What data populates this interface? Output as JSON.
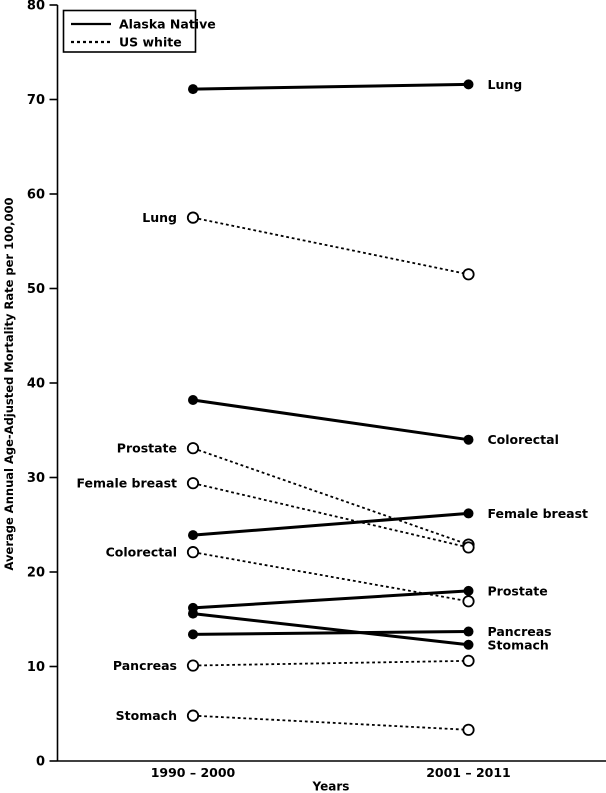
{
  "page": {
    "background": "#ffffff",
    "foreground": "#000000"
  },
  "chart_data": {
    "type": "line",
    "subtype": "slope-graph",
    "title": "",
    "xlabel": "Years",
    "ylabel": "Average Annual Age-Adjusted Mortality Rate per 100,000",
    "categories": [
      "1990 – 2000",
      "2001 – 2011"
    ],
    "ylim": [
      0,
      80
    ],
    "yticks": [
      0,
      10,
      20,
      30,
      40,
      50,
      60,
      70,
      80
    ],
    "grid": false,
    "line_color": "#000000",
    "background_color": "#ffffff",
    "legend": {
      "position": "top-left",
      "entries": [
        {
          "label": "Alaska Native",
          "line": "solid",
          "marker": "filled"
        },
        {
          "label": "US white",
          "line": "dashed",
          "marker": "open"
        }
      ]
    },
    "series": [
      {
        "group": "Alaska Native",
        "cancer": "Lung",
        "label": "Lung",
        "label_side": "right",
        "line": "solid",
        "marker": "filled",
        "values": [
          71.1,
          71.6
        ]
      },
      {
        "group": "Alaska Native",
        "cancer": "Colorectal",
        "label": "Colorectal",
        "label_side": "right",
        "line": "solid",
        "marker": "filled",
        "values": [
          38.2,
          34.0
        ]
      },
      {
        "group": "Alaska Native",
        "cancer": "Female breast",
        "label": "Female breast",
        "label_side": "right",
        "line": "solid",
        "marker": "filled",
        "values": [
          23.9,
          26.2
        ]
      },
      {
        "group": "Alaska Native",
        "cancer": "Prostate",
        "label": "Prostate",
        "label_side": "right",
        "line": "solid",
        "marker": "filled",
        "values": [
          16.2,
          18.0
        ]
      },
      {
        "group": "Alaska Native",
        "cancer": "Pancreas",
        "label": "Pancreas",
        "label_side": "right",
        "line": "solid",
        "marker": "filled",
        "values": [
          13.4,
          13.7
        ]
      },
      {
        "group": "Alaska Native",
        "cancer": "Stomach",
        "label": "Stomach",
        "label_side": "right",
        "line": "solid",
        "marker": "filled",
        "values": [
          15.6,
          12.3
        ]
      },
      {
        "group": "US white",
        "cancer": "Lung",
        "label": "Lung",
        "label_side": "left",
        "line": "dashed",
        "marker": "open",
        "values": [
          57.5,
          51.5
        ]
      },
      {
        "group": "US white",
        "cancer": "Prostate",
        "label": "Prostate",
        "label_side": "left",
        "line": "dashed",
        "marker": "open",
        "values": [
          33.1,
          22.9
        ]
      },
      {
        "group": "US white",
        "cancer": "Female breast",
        "label": "Female breast",
        "label_side": "left",
        "line": "dashed",
        "marker": "open",
        "values": [
          29.4,
          22.6
        ]
      },
      {
        "group": "US white",
        "cancer": "Colorectal",
        "label": "Colorectal",
        "label_side": "left",
        "line": "dashed",
        "marker": "open",
        "values": [
          22.1,
          16.9
        ]
      },
      {
        "group": "US white",
        "cancer": "Pancreas",
        "label": "Pancreas",
        "label_side": "left",
        "line": "dashed",
        "marker": "open",
        "values": [
          10.1,
          10.6
        ]
      },
      {
        "group": "US white",
        "cancer": "Stomach",
        "label": "Stomach",
        "label_side": "left",
        "line": "dashed",
        "marker": "open",
        "values": [
          4.8,
          3.3
        ]
      }
    ]
  }
}
